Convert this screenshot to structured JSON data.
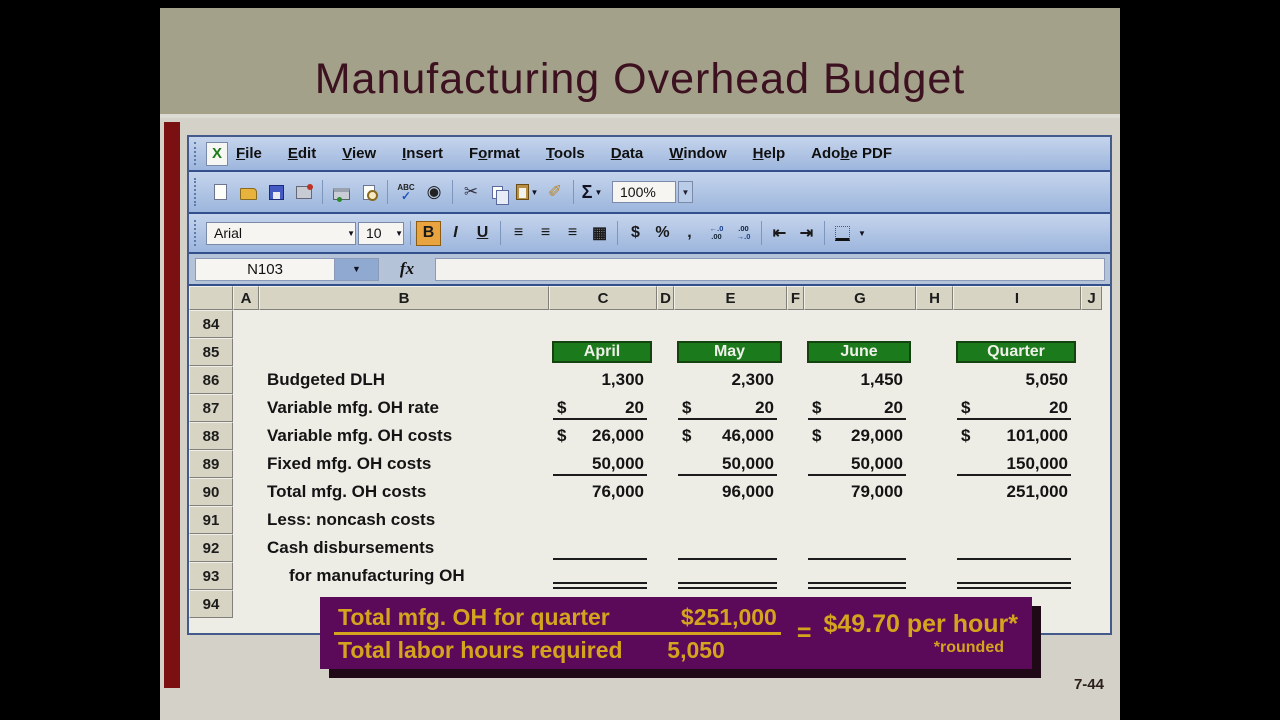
{
  "slide": {
    "title": "Manufacturing Overhead Budget",
    "page_number": "7-44"
  },
  "excel": {
    "menu_items": [
      {
        "label": "File",
        "accel": 0
      },
      {
        "label": "Edit",
        "accel": 0
      },
      {
        "label": "View",
        "accel": 0
      },
      {
        "label": "Insert",
        "accel": 0
      },
      {
        "label": "Format",
        "accel": 1
      },
      {
        "label": "Tools",
        "accel": 0
      },
      {
        "label": "Data",
        "accel": 0
      },
      {
        "label": "Window",
        "accel": 0
      },
      {
        "label": "Help",
        "accel": 0
      },
      {
        "label": "Adobe PDF",
        "accel": 3
      }
    ],
    "std_toolbar_icons": [
      "new-document-icon",
      "open-folder-icon",
      "save-icon",
      "mail-permission-icon",
      "separator",
      "print-icon",
      "print-preview-icon",
      "separator",
      "spelling-icon",
      "camera-icon",
      "separator",
      "cut-icon",
      "copy-icon",
      "paste-icon",
      "format-painter-icon",
      "separator",
      "autosum-icon",
      "zoom-select"
    ],
    "zoom_level": "100%",
    "fmt_toolbar": {
      "font_name": "Arial",
      "font_size": "10",
      "bold_label": "B",
      "italic_label": "I",
      "underline_label": "U",
      "currency_label": "$",
      "percent_label": "%",
      "comma_label": ","
    },
    "name_box": "N103",
    "fx_label": "fx",
    "columns": [
      "A",
      "B",
      "C",
      "D",
      "E",
      "F",
      "G",
      "H",
      "I",
      "J"
    ],
    "rows": [
      {
        "num": "84",
        "label": "",
        "values": [
          "",
          "",
          "",
          ""
        ]
      },
      {
        "num": "85",
        "header_cells": [
          "April",
          "May",
          "June",
          "Quarter"
        ]
      },
      {
        "num": "86",
        "label": "Budgeted DLH",
        "values": [
          "1,300",
          "2,300",
          "1,450",
          "5,050"
        ]
      },
      {
        "num": "87",
        "label": "Variable mfg. OH rate",
        "dollar": true,
        "underline": "single",
        "values": [
          "20",
          "20",
          "20",
          "20"
        ]
      },
      {
        "num": "88",
        "label": "Variable mfg. OH costs",
        "dollar": true,
        "values": [
          "26,000",
          "46,000",
          "29,000",
          "101,000"
        ]
      },
      {
        "num": "89",
        "label": "Fixed mfg. OH costs",
        "underline": "single",
        "values": [
          "50,000",
          "50,000",
          "50,000",
          "150,000"
        ]
      },
      {
        "num": "90",
        "label": "Total mfg. OH costs",
        "values": [
          "76,000",
          "96,000",
          "79,000",
          "251,000"
        ]
      },
      {
        "num": "91",
        "label": "Less: noncash costs",
        "values": [
          "",
          "",
          "",
          ""
        ]
      },
      {
        "num": "92",
        "label": "Cash disbursements",
        "underline": "single",
        "values": [
          "",
          "",
          "",
          ""
        ]
      },
      {
        "num": "93",
        "label": "for manufacturing OH",
        "indent": true,
        "underline": "double",
        "values": [
          "",
          "",
          "",
          ""
        ]
      },
      {
        "num": "94",
        "label": "",
        "values": [
          "",
          "",
          "",
          ""
        ]
      }
    ]
  },
  "callout": {
    "numerator_label": "Total mfg. OH for quarter",
    "numerator_value": "$251,000",
    "denominator_label": "Total labor hours required",
    "denominator_value": "5,050",
    "equals": "=",
    "result": "$49.70 per hour*",
    "note": "*rounded"
  },
  "colors": {
    "banner_bg": "#a3a18a",
    "title_text": "#3c1120",
    "red_bar": "#7b1013",
    "green_header": "#1b7a1b",
    "purple_box": "#5a0a58",
    "gold_text": "#d5a41e"
  }
}
